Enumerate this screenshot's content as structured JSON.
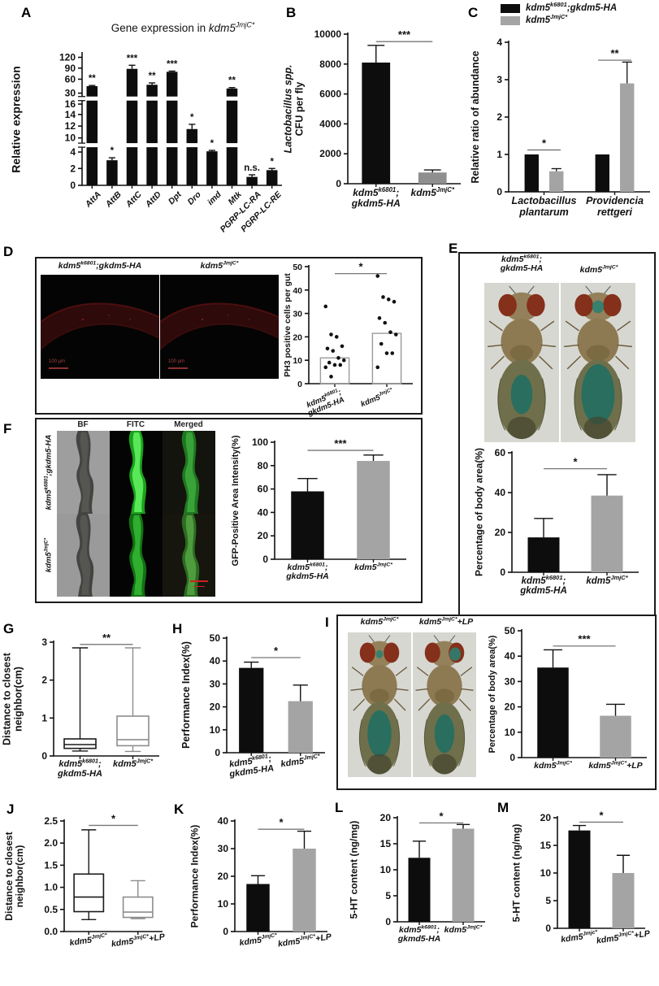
{
  "colors": {
    "black": "#0d0d0d",
    "gray": "#a4a4a4",
    "dark_gray": "#8f8f8f",
    "micro_red": "#3a0d0d",
    "fitc_green": "#46d946",
    "fly_teal": "#1d6f63"
  },
  "panels": {
    "A": {
      "letter": "A"
    },
    "B": {
      "letter": "B"
    },
    "C": {
      "letter": "C",
      "legend": [
        {
          "label": "kdm5^{k6801};gkdm5-HA",
          "color": "#0d0d0d"
        },
        {
          "label": "kdm5^{JmjC*}",
          "color": "#a4a4a4"
        }
      ]
    },
    "D": {
      "letter": "D",
      "image_labels": [
        "kdm5^{k6801};gkdm5-HA",
        "kdm5^{JmjC*}"
      ],
      "scale_label": "100 μm"
    },
    "E": {
      "letter": "E",
      "image_labels": [
        "kdm5^{k6801};\ngkdm5-HA",
        "kdm5^{JmjC*}"
      ]
    },
    "F": {
      "letter": "F",
      "col_headers": [
        "BF",
        "FITC",
        "Merged"
      ],
      "row_labels": [
        "kdm5^{k6801};gkdm5-HA",
        "kdm5^{JmjC*}"
      ]
    },
    "G": {
      "letter": "G"
    },
    "H": {
      "letter": "H"
    },
    "I": {
      "letter": "I",
      "image_labels": [
        "kdm5^{JmjC*}",
        "kdm5^{JmjC*}+LP"
      ]
    },
    "J": {
      "letter": "J"
    },
    "K": {
      "letter": "K"
    },
    "L": {
      "letter": "L"
    },
    "M": {
      "letter": "M"
    }
  },
  "chart_data": [
    {
      "panel": "A",
      "type": "brokenbar",
      "title": "Gene expression in _{kdm5^{JmjC*}}",
      "ylabel": "Relative expression",
      "categories": [
        "AttA",
        "AttB",
        "AttC",
        "AttD",
        "Dpt",
        "Dro",
        "imd",
        "Mtk",
        "PGRP-LC-RA",
        "PGRP-LC-RE"
      ],
      "values": [
        45,
        3,
        88,
        48,
        80,
        11.5,
        4.3,
        40,
        1,
        1.8
      ],
      "errors": [
        1.5,
        0.3,
        10,
        4,
        2,
        0.8,
        0.4,
        2,
        0.25,
        0.2
      ],
      "sig_labels": [
        "**",
        "*",
        "***",
        "**",
        "***",
        "*",
        "*",
        "**",
        "n.s.",
        "*"
      ],
      "yticks": [
        0,
        2,
        4,
        10,
        12,
        14,
        16,
        30,
        60,
        90,
        120
      ],
      "scale_points": [
        [
          0,
          0
        ],
        [
          2,
          0.128
        ],
        [
          4,
          0.253
        ],
        [
          10,
          0.36
        ],
        [
          12,
          0.45
        ],
        [
          14,
          0.538
        ],
        [
          16,
          0.617
        ],
        [
          30,
          0.7
        ],
        [
          60,
          0.806
        ],
        [
          90,
          0.89
        ],
        [
          120,
          0.972
        ]
      ],
      "breaks": [
        0.305,
        0.659
      ],
      "bar_frac": 0.55,
      "xlabel_rotate": -45,
      "xlabel_anchor": "end",
      "xlabel_fs": 10.5,
      "margin": {
        "l": 46,
        "r": 6,
        "t": 22,
        "b": 66
      }
    },
    {
      "panel": "B",
      "type": "bar",
      "ylabel": "_{Lactobacillus spp.}\nCFU per fly",
      "categories": [
        "kdm5^{k6801};\ngkdm5-HA",
        "kdm5^{JmjC*}"
      ],
      "values": [
        8100,
        750
      ],
      "errors": [
        1150,
        170
      ],
      "colors": [
        "#0d0d0d",
        "#8f8f8f"
      ],
      "ylim": [
        0,
        10000
      ],
      "yticks": [
        0,
        2000,
        4000,
        6000,
        8000,
        10000
      ],
      "sig": {
        "label": "***",
        "y": 9500
      },
      "bar_frac": 0.5,
      "xlabel_fs": 12,
      "margin": {
        "l": 56,
        "r": 10,
        "t": 14,
        "b": 54
      }
    },
    {
      "panel": "C",
      "type": "grouped",
      "ylabel": "Relative ratio of abundance",
      "categories": [
        "Lactobacillus\nplantarum",
        "Providencia\nrettgeri"
      ],
      "series": [
        {
          "name": "kdm5^{k6801};gkdm5-HA",
          "color": "#0d0d0d",
          "values": [
            1.0,
            1.0
          ],
          "errors": [
            0,
            0
          ]
        },
        {
          "name": "kdm5^{JmjC*}",
          "color": "#a4a4a4",
          "values": [
            0.55,
            2.9
          ],
          "errors": [
            0.07,
            0.57
          ]
        }
      ],
      "ylim": [
        0,
        4
      ],
      "yticks": [
        0,
        1,
        2,
        3,
        4
      ],
      "sigs": [
        {
          "cat": 0,
          "label": "*",
          "y": 1.12
        },
        {
          "cat": 1,
          "label": "**",
          "y": 3.52
        }
      ],
      "xlabel_fs": 12.5,
      "margin": {
        "l": 28,
        "r": 6,
        "t": 10,
        "b": 46
      }
    },
    {
      "panel": "D",
      "type": "scatter",
      "ylabel": "PH3 positive cells per gut",
      "categories": [
        "kdm5^{k6801};\ngkdm5-HA",
        "kdm5^{JmjC*}"
      ],
      "groups": [
        [
          33,
          21,
          20,
          16,
          15,
          14,
          11,
          10,
          9,
          8,
          8,
          7,
          3
        ],
        [
          46,
          37,
          36,
          35,
          28,
          26,
          22,
          21,
          17,
          13,
          13,
          7
        ]
      ],
      "means": [
        11,
        21.5
      ],
      "ylim": [
        0,
        50
      ],
      "yticks": [
        0,
        10,
        20,
        30,
        40,
        50
      ],
      "sig": {
        "label": "*",
        "y": 47
      },
      "tick_fs": 10.5,
      "xlabel_fs": 9.5,
      "xlabel_rotate": -22,
      "xlabel_anchor": "end",
      "margin": {
        "l": 30,
        "r": 10,
        "t": 8,
        "b": 34
      }
    },
    {
      "panel": "E",
      "type": "bar",
      "ylabel": "Percentage of body area(%)",
      "categories": [
        "kdm5^{k6801};\ngkdm5-HA",
        "kdm5^{JmjC*}"
      ],
      "values": [
        17.5,
        38.5
      ],
      "errors": [
        9.5,
        10.5
      ],
      "colors": [
        "#0d0d0d",
        "#a4a4a4"
      ],
      "ylim": [
        0,
        60
      ],
      "yticks": [
        0,
        20,
        40,
        60
      ],
      "sig": {
        "label": "*",
        "y": 52
      },
      "bar_frac": 0.5,
      "xlabel_fs": 11.5,
      "margin": {
        "l": 30,
        "r": 12,
        "t": 12,
        "b": 46
      }
    },
    {
      "panel": "F",
      "type": "bar",
      "ylabel": "GFP-Positive Area Intensity(%)",
      "categories": [
        "kdm5^{k6801};\ngkdm5-HA",
        "kdm5^{JmjC*}"
      ],
      "values": [
        58,
        84
      ],
      "errors": [
        11,
        5
      ],
      "colors": [
        "#0d0d0d",
        "#a4a4a4"
      ],
      "ylim": [
        0,
        100
      ],
      "yticks": [
        0,
        20,
        40,
        60,
        80,
        100
      ],
      "sig": {
        "label": "***",
        "y": 93
      },
      "bar_frac": 0.5,
      "xlabel_fs": 10.5,
      "margin": {
        "l": 40,
        "r": 10,
        "t": 12,
        "b": 40
      }
    },
    {
      "panel": "G",
      "type": "box",
      "ylabel": "Distance to closest\nneighbor(cm)",
      "categories": [
        "kdm5^{k6801};\ngkdm5-HA",
        "kdm5^{JmjC*}"
      ],
      "boxes": [
        {
          "min": 0.13,
          "q1": 0.2,
          "med": 0.3,
          "q3": 0.45,
          "max": 2.85,
          "color": "#1a1a1a"
        },
        {
          "min": 0.12,
          "q1": 0.27,
          "med": 0.43,
          "q3": 1.05,
          "max": 2.85,
          "color": "#8d8d8d"
        }
      ],
      "ylim": [
        0,
        3
      ],
      "yticks": [
        0,
        1,
        2,
        3
      ],
      "sig": {
        "label": "**",
        "y": 2.94
      },
      "bar_frac": 0.6,
      "xlabel_fs": 11,
      "margin": {
        "l": 28,
        "r": 12,
        "t": 10,
        "b": 42
      }
    },
    {
      "panel": "H",
      "type": "bar",
      "ylabel": "Performance Index(%)",
      "categories": [
        "kdm5^{k6801};\ngkdm5-HA",
        "kdm5^{JmjC*}"
      ],
      "values": [
        37,
        22.5
      ],
      "errors": [
        2.5,
        7
      ],
      "colors": [
        "#0d0d0d",
        "#a4a4a4"
      ],
      "ylim": [
        0,
        50
      ],
      "yticks": [
        0,
        10,
        20,
        30,
        40,
        50
      ],
      "sig": {
        "label": "*",
        "y": 41.5
      },
      "bar_frac": 0.5,
      "xlabel_fs": 11,
      "xlabel_rotate": -8,
      "margin": {
        "l": 34,
        "r": 10,
        "t": 10,
        "b": 46
      }
    },
    {
      "panel": "I",
      "type": "bar",
      "ylabel": "Percentage of body area(%)",
      "categories": [
        "kdm5^{JmjC*}",
        "kdm5^{JmjC*}+LP"
      ],
      "values": [
        35.5,
        16.5
      ],
      "errors": [
        7,
        4.5
      ],
      "colors": [
        "#0d0d0d",
        "#a4a4a4"
      ],
      "ylim": [
        0,
        50
      ],
      "yticks": [
        0,
        10,
        20,
        30,
        40,
        50
      ],
      "sig": {
        "label": "***",
        "y": 44
      },
      "bar_frac": 0.5,
      "xlabel_fs": 10.5,
      "margin": {
        "l": 30,
        "r": 8,
        "t": 10,
        "b": 30
      }
    },
    {
      "panel": "J",
      "type": "box",
      "ylabel": "Distance to closest\nneighbor(cm)",
      "categories": [
        "kdm5^{JmjC*}",
        "kdm5^{JmjC*}+LP"
      ],
      "boxes": [
        {
          "min": 0.27,
          "q1": 0.45,
          "med": 0.78,
          "q3": 1.3,
          "max": 2.3,
          "color": "#1a1a1a"
        },
        {
          "min": 0.29,
          "q1": 0.32,
          "med": 0.44,
          "q3": 0.78,
          "max": 1.15,
          "color": "#8d8d8d"
        }
      ],
      "ylim": [
        0,
        2.5
      ],
      "yticks": [
        {
          "v": 0,
          "t": "0.0"
        },
        {
          "v": 0.5,
          "t": "0.5"
        },
        {
          "v": 1,
          "t": "1.0"
        },
        {
          "v": 1.5,
          "t": "1.5"
        },
        {
          "v": 2,
          "t": "2.0"
        },
        {
          "v": 2.5,
          "t": "2.5"
        }
      ],
      "sig": {
        "label": "*",
        "y": 2.4
      },
      "bar_frac": 0.6,
      "xlabel_fs": 10.5,
      "xlabel_rotate": -8,
      "margin": {
        "l": 34,
        "r": 10,
        "t": 8,
        "b": 28
      }
    },
    {
      "panel": "K",
      "type": "bar",
      "ylabel": "Performance Index(%)",
      "categories": [
        "kdm5^{JmjC*}",
        "kdm5^{JmjC*}+LP"
      ],
      "values": [
        17.2,
        30
      ],
      "errors": [
        3,
        6.3
      ],
      "colors": [
        "#0d0d0d",
        "#a4a4a4"
      ],
      "ylim": [
        0,
        40
      ],
      "yticks": [
        0,
        10,
        20,
        30,
        40
      ],
      "sig": {
        "label": "*",
        "y": 37
      },
      "bar_frac": 0.5,
      "xlabel_fs": 10.5,
      "xlabel_rotate": -8,
      "margin": {
        "l": 34,
        "r": 10,
        "t": 8,
        "b": 28
      }
    },
    {
      "panel": "L",
      "type": "bar",
      "ylabel": "5-HT content (ng/mg)",
      "categories": [
        "kdm5^{k6801};\ngkmd5-HA",
        "kdm5^{JmjC*}"
      ],
      "values": [
        12.3,
        17.9
      ],
      "errors": [
        3.2,
        0.8
      ],
      "colors": [
        "#0d0d0d",
        "#a4a4a4"
      ],
      "ylim": [
        0,
        20
      ],
      "yticks": [
        0,
        5,
        10,
        15,
        20
      ],
      "sig": {
        "label": "*",
        "y": 19
      },
      "bar_frac": 0.5,
      "xlabel_fs": 10.5,
      "margin": {
        "l": 34,
        "r": 10,
        "t": 8,
        "b": 40
      }
    },
    {
      "panel": "M",
      "type": "bar",
      "ylabel": "5-HT content (ng/mg)",
      "categories": [
        "kdm5^{Jmjc*}",
        "kdm5^{JmjC*}+LP"
      ],
      "values": [
        17.7,
        10
      ],
      "errors": [
        0.9,
        3.2
      ],
      "colors": [
        "#0d0d0d",
        "#a4a4a4"
      ],
      "ylim": [
        0,
        20
      ],
      "yticks": [
        0,
        5,
        10,
        15,
        20
      ],
      "sig": {
        "label": "*",
        "y": 19.2
      },
      "bar_frac": 0.5,
      "xlabel_fs": 10.5,
      "xlabel_rotate": -8,
      "margin": {
        "l": 34,
        "r": 10,
        "t": 8,
        "b": 28
      }
    }
  ]
}
